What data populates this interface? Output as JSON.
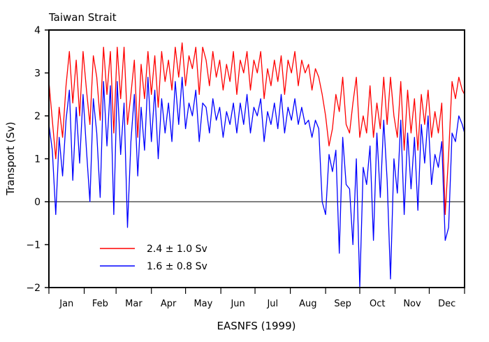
{
  "chart_data": {
    "type": "line",
    "title": "Taiwan Strait",
    "xlabel": "EASNFS (1999)",
    "ylabel": "Transport (Sv)",
    "ylim": [
      -2,
      4
    ],
    "xlim": [
      0,
      365
    ],
    "yticks": [
      "4",
      "3",
      "2",
      "1",
      "0",
      "−2"
    ],
    "ytick_values": [
      4,
      3,
      2,
      1,
      0,
      -2
    ],
    "ytick_labels": [
      {
        "value": 4,
        "label": "4"
      },
      {
        "value": 3,
        "label": "3"
      },
      {
        "value": 2,
        "label": "2"
      },
      {
        "value": 1,
        "label": "1"
      },
      {
        "value": 0,
        "label": "0"
      },
      {
        "value": -1,
        "label": "−1"
      },
      {
        "value": -2,
        "label": "−2"
      }
    ],
    "months": [
      "Jan",
      "Feb",
      "Mar",
      "Apr",
      "May",
      "Jun",
      "Jul",
      "Aug",
      "Sep",
      "Oct",
      "Nov",
      "Dec"
    ],
    "month_boundaries": [
      0,
      31,
      59,
      90,
      120,
      151,
      181,
      212,
      243,
      273,
      304,
      334,
      365
    ],
    "zero_line": 0,
    "legend_position": "bottom-left",
    "series": [
      {
        "name": "2.4 ± 1.0 Sv",
        "color": "#ff0000",
        "x": [
          0,
          3,
          6,
          9,
          12,
          15,
          18,
          21,
          24,
          27,
          30,
          33,
          36,
          39,
          42,
          45,
          48,
          51,
          54,
          57,
          60,
          63,
          66,
          69,
          72,
          75,
          78,
          81,
          84,
          87,
          90,
          93,
          96,
          99,
          102,
          105,
          108,
          111,
          114,
          117,
          120,
          123,
          126,
          129,
          132,
          135,
          138,
          141,
          144,
          147,
          150,
          153,
          156,
          159,
          162,
          165,
          168,
          171,
          174,
          177,
          180,
          183,
          186,
          189,
          192,
          195,
          198,
          201,
          204,
          207,
          210,
          213,
          216,
          219,
          222,
          225,
          228,
          231,
          234,
          237,
          240,
          243,
          246,
          249,
          252,
          255,
          258,
          261,
          264,
          267,
          270,
          273,
          276,
          279,
          282,
          285,
          288,
          291,
          294,
          297,
          300,
          303,
          306,
          309,
          312,
          315,
          318,
          321,
          324,
          327,
          330,
          333,
          336,
          339,
          342,
          345,
          348,
          351,
          354,
          357,
          360,
          363,
          365
        ],
        "y": [
          2.8,
          1.9,
          1.0,
          2.2,
          1.5,
          2.7,
          3.5,
          2.3,
          3.3,
          2.0,
          3.5,
          2.6,
          1.8,
          3.4,
          2.9,
          1.9,
          3.6,
          2.5,
          3.5,
          1.6,
          3.6,
          2.4,
          3.6,
          1.8,
          2.5,
          3.3,
          1.5,
          3.2,
          2.4,
          3.5,
          2.5,
          3.4,
          2.2,
          3.5,
          2.8,
          3.3,
          2.6,
          3.6,
          2.9,
          3.7,
          2.7,
          3.4,
          3.1,
          3.6,
          2.5,
          3.6,
          3.3,
          2.7,
          3.5,
          2.9,
          3.3,
          2.6,
          3.2,
          2.8,
          3.5,
          2.5,
          3.3,
          3.0,
          3.5,
          2.6,
          3.3,
          3.0,
          3.5,
          2.4,
          3.1,
          2.7,
          3.3,
          2.8,
          3.4,
          2.5,
          3.3,
          3.0,
          3.5,
          2.7,
          3.3,
          3.0,
          3.2,
          2.6,
          3.1,
          2.9,
          2.5,
          2.0,
          1.3,
          1.7,
          2.5,
          2.1,
          2.9,
          1.8,
          1.6,
          2.3,
          2.9,
          1.5,
          2.0,
          1.6,
          2.7,
          1.5,
          2.3,
          1.7,
          2.9,
          1.8,
          2.9,
          2.0,
          1.5,
          2.8,
          1.2,
          2.6,
          1.6,
          2.4,
          1.2,
          2.5,
          1.8,
          2.6,
          1.5,
          2.1,
          1.6,
          2.3,
          -0.3,
          1.1,
          2.8,
          2.4,
          2.9,
          2.6,
          2.5
        ]
      },
      {
        "name": "1.6 ± 0.8 Sv",
        "color": "#0000ff",
        "x": [
          0,
          3,
          6,
          9,
          12,
          15,
          18,
          21,
          24,
          27,
          30,
          33,
          36,
          39,
          42,
          45,
          48,
          51,
          54,
          57,
          60,
          63,
          66,
          69,
          72,
          75,
          78,
          81,
          84,
          87,
          90,
          93,
          96,
          99,
          102,
          105,
          108,
          111,
          114,
          117,
          120,
          123,
          126,
          129,
          132,
          135,
          138,
          141,
          144,
          147,
          150,
          153,
          156,
          159,
          162,
          165,
          168,
          171,
          174,
          177,
          180,
          183,
          186,
          189,
          192,
          195,
          198,
          201,
          204,
          207,
          210,
          213,
          216,
          219,
          222,
          225,
          228,
          231,
          234,
          237,
          240,
          243,
          246,
          249,
          252,
          255,
          258,
          261,
          264,
          267,
          270,
          273,
          276,
          279,
          282,
          285,
          288,
          291,
          294,
          297,
          300,
          303,
          306,
          309,
          312,
          315,
          318,
          321,
          324,
          327,
          330,
          333,
          336,
          339,
          342,
          345,
          348,
          351,
          354,
          357,
          360,
          363,
          365
        ],
        "y": [
          1.8,
          1.2,
          -0.3,
          1.5,
          0.6,
          1.9,
          2.6,
          0.5,
          2.2,
          0.9,
          2.5,
          1.2,
          0.0,
          2.4,
          1.6,
          0.1,
          2.8,
          1.3,
          2.7,
          -0.3,
          2.8,
          1.1,
          2.3,
          -0.6,
          1.4,
          2.5,
          0.6,
          2.2,
          1.2,
          2.9,
          1.4,
          2.6,
          1.0,
          2.4,
          1.6,
          2.3,
          1.4,
          2.8,
          1.8,
          2.9,
          1.7,
          2.3,
          2.0,
          2.6,
          1.4,
          2.3,
          2.2,
          1.6,
          2.4,
          1.9,
          2.2,
          1.5,
          2.1,
          1.8,
          2.3,
          1.6,
          2.3,
          1.8,
          2.5,
          1.6,
          2.2,
          2.0,
          2.4,
          1.4,
          2.1,
          1.8,
          2.3,
          1.7,
          2.5,
          1.6,
          2.2,
          1.9,
          2.4,
          1.8,
          2.2,
          1.8,
          1.9,
          1.5,
          1.9,
          1.7,
          0.0,
          -0.3,
          1.1,
          0.7,
          1.2,
          -1.2,
          1.5,
          0.4,
          0.3,
          -1.0,
          1.0,
          -2.0,
          0.8,
          0.4,
          1.3,
          -0.9,
          1.6,
          0.1,
          1.9,
          0.5,
          -1.8,
          1.0,
          0.2,
          1.9,
          -0.3,
          1.6,
          0.3,
          1.5,
          -0.2,
          1.8,
          0.9,
          2.0,
          0.4,
          1.1,
          0.8,
          1.4,
          -0.9,
          -0.6,
          1.6,
          1.4,
          2.0,
          1.8,
          1.6
        ]
      }
    ]
  }
}
